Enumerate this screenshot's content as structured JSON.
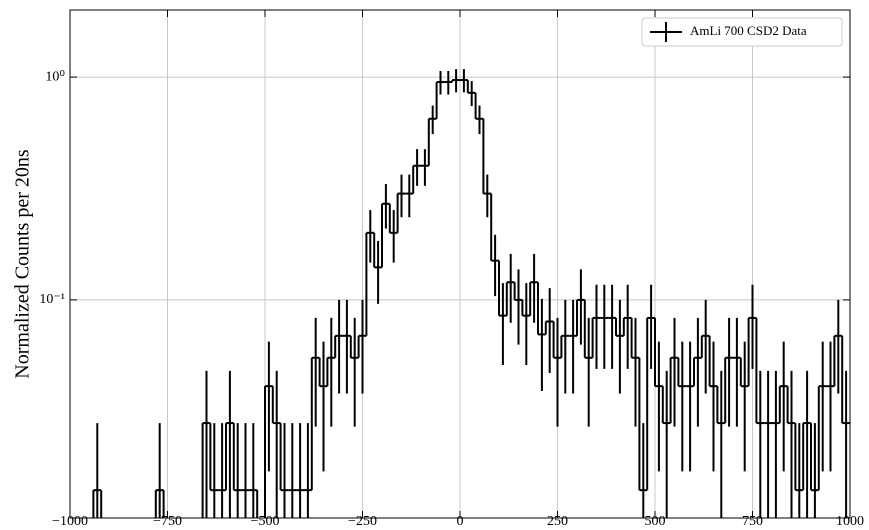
{
  "chart_data": {
    "type": "histogram",
    "ylabel": "Normalized Counts per 20ns",
    "bins": [
      -1000,
      -980,
      -960,
      -940,
      -920,
      -900,
      -880,
      -860,
      -840,
      -820,
      -800,
      -780,
      -760,
      -740,
      -720,
      -700,
      -680,
      -660,
      -640,
      -620,
      -600,
      -580,
      -560,
      -540,
      -520,
      -500,
      -480,
      -460,
      -440,
      -420,
      -400,
      -380,
      -360,
      -340,
      -320,
      -300,
      -280,
      -260,
      -240,
      -220,
      -200,
      -180,
      -160,
      -140,
      -120,
      -100,
      -80,
      -60,
      -40,
      -20,
      0,
      20,
      40,
      60,
      80,
      100,
      120,
      140,
      160,
      180,
      200,
      220,
      240,
      260,
      280,
      300,
      320,
      340,
      360,
      380,
      400,
      420,
      440,
      460,
      480,
      500,
      520,
      540,
      560,
      580,
      600,
      620,
      640,
      660,
      680,
      700,
      720,
      740,
      760,
      780,
      800,
      820,
      840,
      860,
      880,
      900,
      920,
      940,
      960,
      980,
      1000
    ],
    "series": [
      {
        "name": "AmLi 700 CSD2 Data",
        "color": "#000000",
        "values": [
          0,
          0,
          0,
          0.014,
          0,
          0,
          0,
          0,
          0,
          0,
          0,
          0.014,
          0,
          0,
          0,
          0,
          0,
          0.028,
          0.014,
          0.014,
          0.028,
          0.014,
          0.014,
          0.014,
          0,
          0.041,
          0.028,
          0.014,
          0.014,
          0.014,
          0.014,
          0.055,
          0.041,
          0.055,
          0.069,
          0.069,
          0.055,
          0.069,
          0.2,
          0.14,
          0.27,
          0.2,
          0.3,
          0.3,
          0.4,
          0.4,
          0.65,
          0.95,
          0.95,
          0.97,
          0.97,
          0.85,
          0.65,
          0.3,
          0.15,
          0.085,
          0.12,
          0.1,
          0.085,
          0.12,
          0.07,
          0.08,
          0.055,
          0.069,
          0.069,
          0.1,
          0.055,
          0.083,
          0.083,
          0.083,
          0.069,
          0.083,
          0.055,
          0.014,
          0.083,
          0.041,
          0.028,
          0.055,
          0.041,
          0.041,
          0.055,
          0.069,
          0.041,
          0.028,
          0.055,
          0.055,
          0.041,
          0.083,
          0.028,
          0.028,
          0.028,
          0.041,
          0.028,
          0.014,
          0.028,
          0.014,
          0.041,
          0.041,
          0.069,
          0.028
        ],
        "errors": [
          null,
          null,
          null,
          0.014,
          null,
          null,
          null,
          null,
          null,
          null,
          null,
          0.014,
          null,
          null,
          null,
          null,
          null,
          0.02,
          0.014,
          0.014,
          0.02,
          0.014,
          0.014,
          0.014,
          null,
          0.024,
          0.02,
          0.014,
          0.014,
          0.014,
          0.014,
          0.028,
          0.024,
          0.028,
          0.031,
          0.031,
          0.028,
          0.031,
          0.053,
          0.044,
          0.061,
          0.053,
          0.065,
          0.065,
          0.075,
          0.075,
          0.095,
          0.115,
          0.115,
          0.116,
          0.116,
          0.109,
          0.095,
          0.065,
          0.046,
          0.034,
          0.041,
          0.037,
          0.034,
          0.041,
          0.031,
          0.033,
          0.028,
          0.031,
          0.031,
          0.037,
          0.028,
          0.034,
          0.034,
          0.034,
          0.031,
          0.034,
          0.028,
          0.014,
          0.034,
          0.024,
          0.02,
          0.028,
          0.024,
          0.024,
          0.028,
          0.031,
          0.024,
          0.02,
          0.028,
          0.028,
          0.024,
          0.034,
          0.02,
          0.02,
          0.02,
          0.024,
          0.02,
          0.014,
          0.02,
          0.014,
          0.024,
          0.024,
          0.031,
          0.02
        ]
      }
    ],
    "xlim": [
      -1000,
      1000
    ],
    "xticks": [
      {
        "value": -1000,
        "label": "−1000"
      },
      {
        "value": -750,
        "label": "−750"
      },
      {
        "value": -500,
        "label": "−500"
      },
      {
        "value": -250,
        "label": "−250"
      },
      0,
      250,
      500,
      750,
      1000
    ],
    "ylim": [
      0.0105,
      2.0
    ],
    "yscale": "log",
    "yticks": [
      {
        "value": 0.1,
        "label": "10⁻¹"
      },
      {
        "value": 1,
        "label": "10⁰"
      }
    ],
    "grid": true,
    "legend": "upper right"
  }
}
